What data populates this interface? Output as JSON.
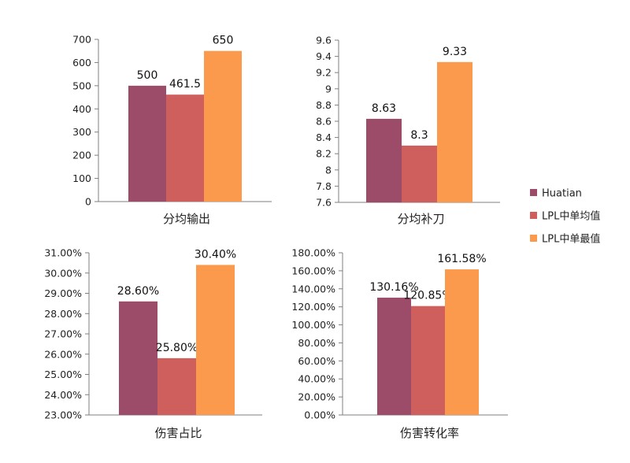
{
  "colors": [
    "#9c4c68",
    "#cf5f5d",
    "#fb9a4c"
  ],
  "legend": [
    "Huatian",
    "LPL中单均值",
    "LPL中单最值"
  ],
  "chart_data": [
    {
      "type": "bar",
      "categories": [
        ""
      ],
      "series": [
        {
          "name": "Huatian",
          "values": [
            500
          ]
        },
        {
          "name": "LPL中单均值",
          "values": [
            461.5
          ]
        },
        {
          "name": "LPL中单最值",
          "values": [
            650
          ]
        }
      ],
      "data_labels": [
        "500",
        "461.5",
        "650"
      ],
      "xlabel": "分均输出",
      "ylabel": "",
      "ylim": [
        0,
        700
      ],
      "yticks": [
        0,
        100,
        200,
        300,
        400,
        500,
        600,
        700
      ],
      "ytick_labels": [
        "0",
        "100",
        "200",
        "300",
        "400",
        "500",
        "600",
        "700"
      ],
      "grid": false,
      "legend_position": "right"
    },
    {
      "type": "bar",
      "categories": [
        ""
      ],
      "series": [
        {
          "name": "Huatian",
          "values": [
            8.63
          ]
        },
        {
          "name": "LPL中单均值",
          "values": [
            8.3
          ]
        },
        {
          "name": "LPL中单最值",
          "values": [
            9.33
          ]
        }
      ],
      "data_labels": [
        "8.63",
        "8.3",
        "9.33"
      ],
      "xlabel": "分均补刀",
      "ylabel": "",
      "ylim": [
        7.6,
        9.6
      ],
      "yticks": [
        7.6,
        7.8,
        8,
        8.2,
        8.4,
        8.6,
        8.8,
        9,
        9.2,
        9.4,
        9.6
      ],
      "ytick_labels": [
        "7.6",
        "7.8",
        "8",
        "8.2",
        "8.4",
        "8.6",
        "8.8",
        "9",
        "9.2",
        "9.4",
        "9.6"
      ],
      "grid": false,
      "legend_position": "right"
    },
    {
      "type": "bar",
      "categories": [
        ""
      ],
      "series": [
        {
          "name": "Huatian",
          "values": [
            28.6
          ]
        },
        {
          "name": "LPL中单均值",
          "values": [
            25.8
          ]
        },
        {
          "name": "LPL中单最值",
          "values": [
            30.4
          ]
        }
      ],
      "data_labels": [
        "28.60%",
        "25.80%",
        "30.40%"
      ],
      "xlabel": "伤害占比",
      "ylabel": "",
      "ylim": [
        23,
        31
      ],
      "yticks": [
        23,
        24,
        25,
        26,
        27,
        28,
        29,
        30,
        31
      ],
      "ytick_labels": [
        "23.00%",
        "24.00%",
        "25.00%",
        "26.00%",
        "27.00%",
        "28.00%",
        "29.00%",
        "30.00%",
        "31.00%"
      ],
      "grid": false,
      "legend_position": "right"
    },
    {
      "type": "bar",
      "categories": [
        ""
      ],
      "series": [
        {
          "name": "Huatian",
          "values": [
            130.16
          ]
        },
        {
          "name": "LPL中单均值",
          "values": [
            120.85
          ]
        },
        {
          "name": "LPL中单最值",
          "values": [
            161.58
          ]
        }
      ],
      "data_labels": [
        "130.16%",
        "120.85%",
        "161.58%"
      ],
      "xlabel": "伤害转化率",
      "ylabel": "",
      "ylim": [
        0,
        180
      ],
      "yticks": [
        0,
        20,
        40,
        60,
        80,
        100,
        120,
        140,
        160,
        180
      ],
      "ytick_labels": [
        "0.00%",
        "20.00%",
        "40.00%",
        "60.00%",
        "80.00%",
        "100.00%",
        "120.00%",
        "140.00%",
        "160.00%",
        "180.00%"
      ],
      "grid": false,
      "legend_position": "right"
    }
  ]
}
